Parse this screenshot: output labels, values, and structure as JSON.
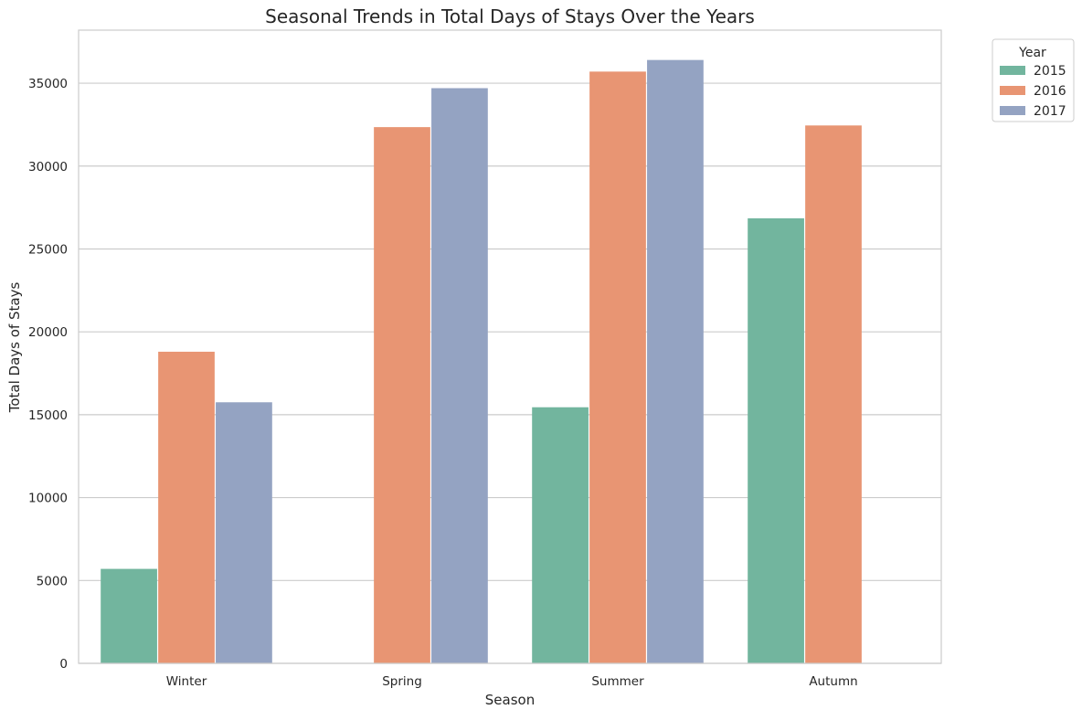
{
  "chart_data": {
    "type": "bar",
    "title": "Seasonal Trends in Total Days of Stays Over the Years",
    "xlabel": "Season",
    "ylabel": "Total Days of Stays",
    "categories": [
      "Winter",
      "Spring",
      "Summer",
      "Autumn"
    ],
    "ylim": [
      0,
      38200
    ],
    "yticks": [
      0,
      5000,
      10000,
      15000,
      20000,
      25000,
      30000,
      35000
    ],
    "ytick_labels": [
      "0",
      "5000",
      "10000",
      "15000",
      "20000",
      "25000",
      "30000",
      "35000"
    ],
    "grid": "horizontal",
    "legend": {
      "title": "Year",
      "placement": "outside-top-right"
    },
    "series": [
      {
        "name": "2015",
        "color": "#72b59e",
        "values": [
          5700,
          null,
          15450,
          26850
        ]
      },
      {
        "name": "2016",
        "color": "#e89573",
        "values": [
          18800,
          32350,
          35700,
          32450
        ]
      },
      {
        "name": "2017",
        "color": "#94a3c2",
        "values": [
          15750,
          34700,
          36400,
          null
        ]
      }
    ]
  }
}
